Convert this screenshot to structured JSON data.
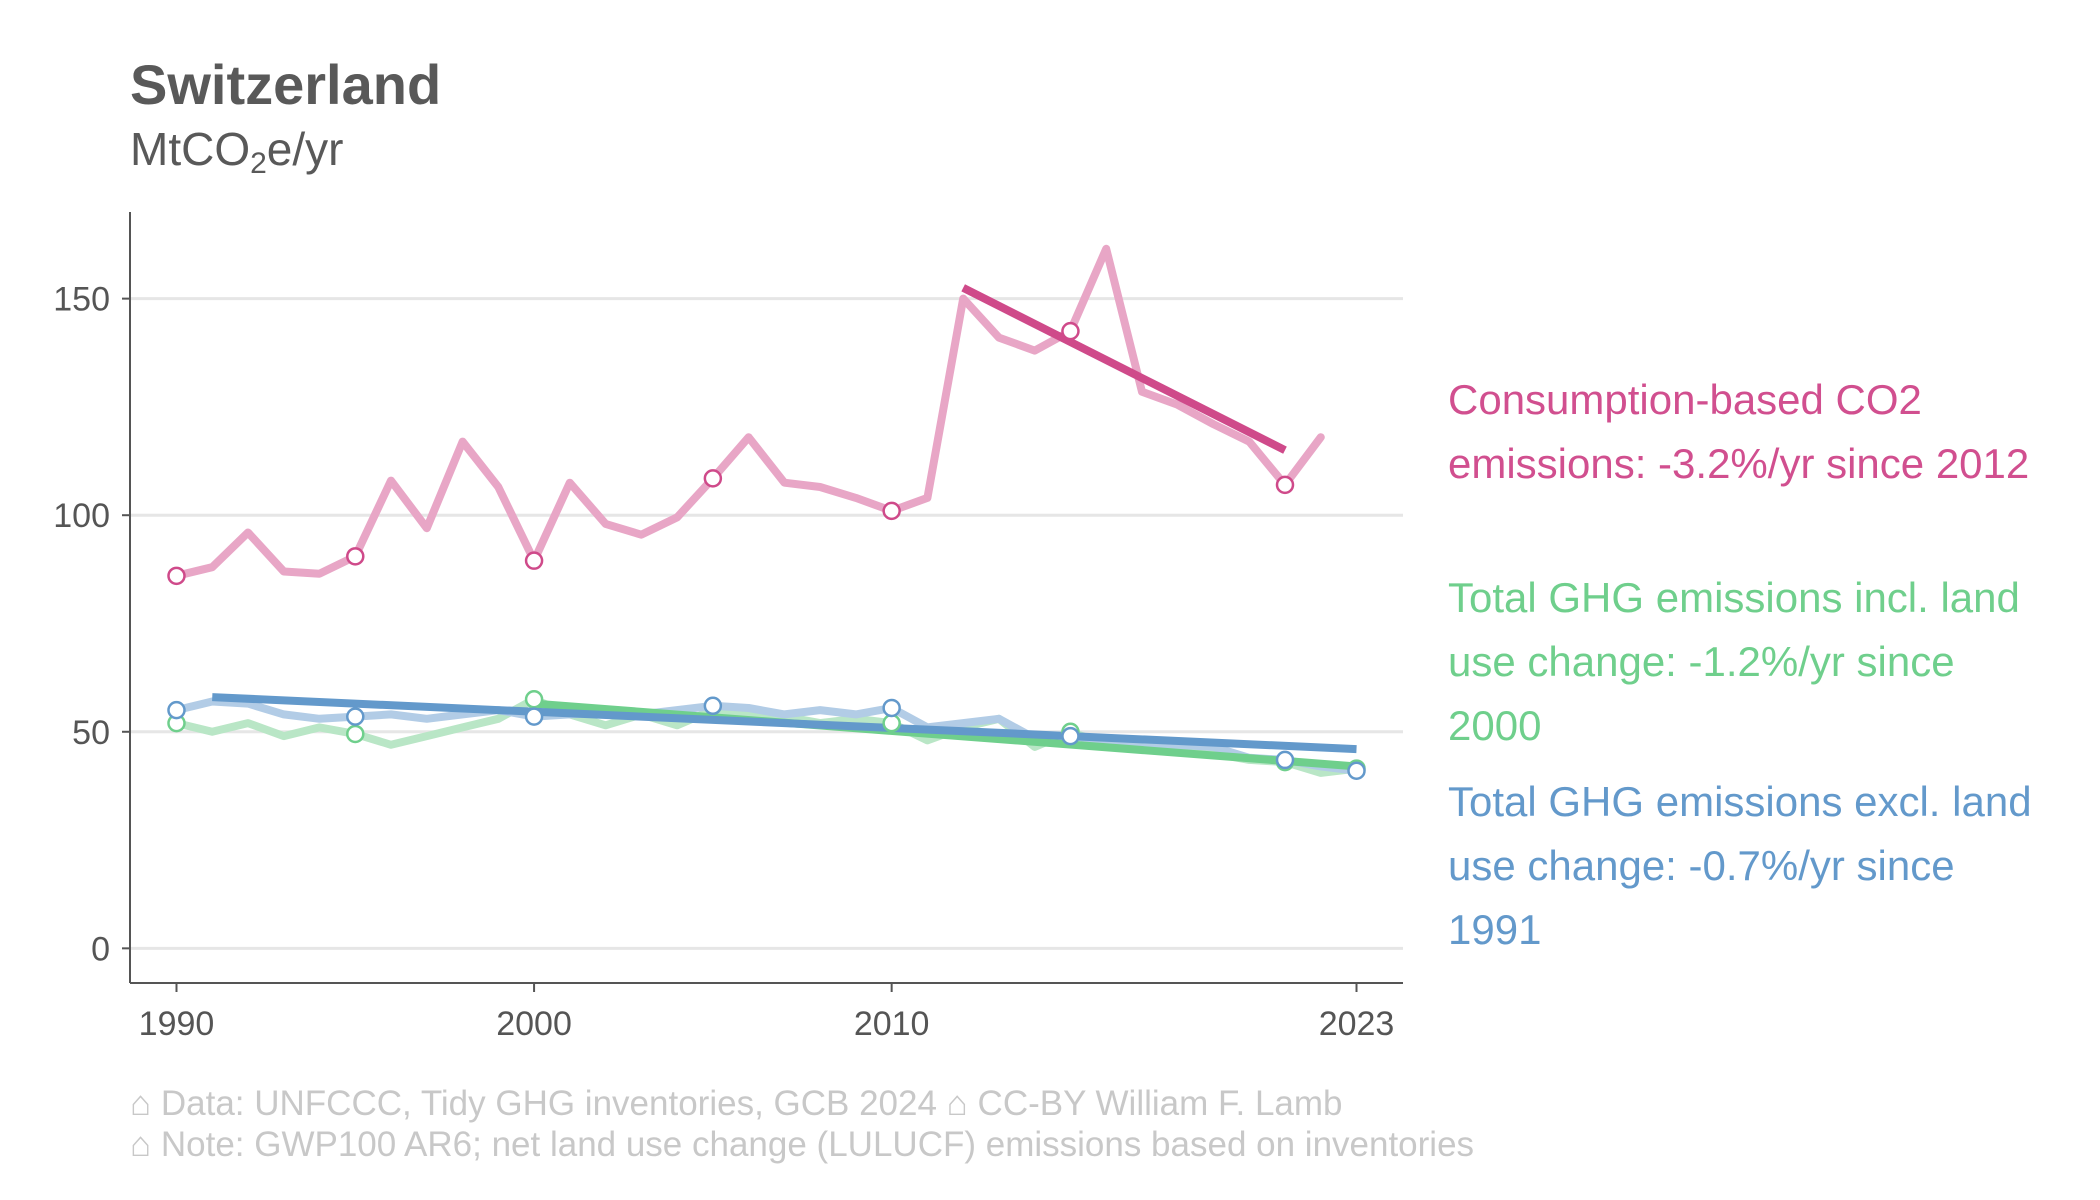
{
  "header": {
    "title": "Switzerland",
    "subtitle_main": "MtCO",
    "subtitle_sub": "2",
    "subtitle_tail": "e/yr"
  },
  "legend": {
    "consumption": [
      "Consumption-based CO2",
      "emissions: -3.2%/yr since 2012"
    ],
    "incl_luc": [
      "Total GHG emissions incl. land",
      "use change: -1.2%/yr since",
      "2000"
    ],
    "excl_luc": [
      "Total GHG emissions excl. land",
      "use change: -0.7%/yr since",
      "1991"
    ]
  },
  "footer": {
    "line1": "⌂ Data: UNFCCC, Tidy GHG inventories, GCB 2024    ⌂ CC-BY William F. Lamb",
    "line2": "⌂ Note: GWP100 AR6; net land use change (LULUCF) emissions based on inventories"
  },
  "colors": {
    "consumption_line": "#e8a6c6",
    "consumption_trend": "#cf4a8a",
    "incl_line": "#b9e6c6",
    "incl_trend": "#6fcf8c",
    "excl_line": "#b2cce6",
    "excl_trend": "#6399cb",
    "grid": "#e6e6e6",
    "axis": "#555555"
  },
  "chart_data": {
    "type": "line",
    "xlim": [
      1988.7,
      2024.3
    ],
    "ylim": [
      -8,
      170
    ],
    "xticks": [
      1990,
      2000,
      2010,
      2023
    ],
    "yticks": [
      0,
      50,
      100,
      150
    ],
    "grid": "horizontal",
    "legend_position": "right",
    "series": [
      {
        "key": "consumption",
        "line_color": "#e8a6c6",
        "marker_color": "#cf4a8a",
        "x": [
          1990,
          1991,
          1992,
          1993,
          1994,
          1995,
          1996,
          1997,
          1998,
          1999,
          2000,
          2001,
          2002,
          2003,
          2004,
          2005,
          2006,
          2007,
          2008,
          2009,
          2010,
          2011,
          2012,
          2013,
          2014,
          2015,
          2016,
          2017,
          2018,
          2019,
          2020,
          2021,
          2022
        ],
        "y": [
          86,
          88,
          96,
          87,
          86.5,
          90.5,
          108,
          97,
          117,
          106.5,
          89.5,
          107.5,
          98,
          95.5,
          99.5,
          108.5,
          118,
          107.5,
          106.5,
          104,
          101,
          104,
          150,
          141,
          138,
          142.5,
          161.5,
          128.5,
          125.5,
          121,
          117,
          107,
          118
        ],
        "markers_x": [
          1990,
          1995,
          2000,
          2005,
          2010,
          2015,
          2021
        ],
        "markers_y": [
          86,
          90.5,
          89.5,
          108.5,
          101,
          142.5,
          107
        ],
        "trend": {
          "x0": 2012,
          "y0": 152.5,
          "x1": 2021,
          "y1": 115,
          "color": "#cf4a8a"
        }
      },
      {
        "key": "incl_luc",
        "line_color": "#b9e6c6",
        "marker_color": "#6fcf8c",
        "x": [
          1990,
          1991,
          1992,
          1993,
          1994,
          1995,
          1996,
          1997,
          1998,
          1999,
          2000,
          2001,
          2002,
          2003,
          2004,
          2005,
          2006,
          2007,
          2008,
          2009,
          2010,
          2011,
          2012,
          2013,
          2014,
          2015,
          2016,
          2017,
          2018,
          2019,
          2020,
          2021,
          2022,
          2023
        ],
        "y": [
          52,
          50,
          52,
          49,
          51,
          49.5,
          47,
          49,
          51,
          53,
          57.5,
          54,
          51.5,
          54,
          51.5,
          55,
          54,
          53.5,
          52,
          53,
          52,
          48,
          51,
          53,
          46.5,
          50,
          47,
          47,
          46.5,
          45,
          43.5,
          43,
          40.5,
          41.5
        ],
        "markers_x": [
          1990,
          1995,
          2000,
          2010,
          2015,
          2021,
          2023
        ],
        "markers_y": [
          52,
          49.5,
          57.5,
          52,
          50,
          43,
          41.5
        ],
        "trend": {
          "x0": 2000,
          "y0": 56.5,
          "x1": 2023,
          "y1": 42,
          "color": "#6fcf8c"
        }
      },
      {
        "key": "excl_luc",
        "line_color": "#b2cce6",
        "marker_color": "#6399cb",
        "x": [
          1990,
          1991,
          1992,
          1993,
          1994,
          1995,
          1996,
          1997,
          1998,
          1999,
          2000,
          2001,
          2002,
          2003,
          2004,
          2005,
          2006,
          2007,
          2008,
          2009,
          2010,
          2011,
          2012,
          2013,
          2014,
          2015,
          2016,
          2017,
          2018,
          2019,
          2020,
          2021,
          2022,
          2023
        ],
        "y": [
          55,
          57,
          56.5,
          54,
          53,
          53.5,
          54,
          53,
          54,
          55,
          53.5,
          54,
          54.5,
          54,
          55,
          56,
          55.5,
          54,
          55,
          54,
          55.5,
          51,
          52,
          53,
          48.5,
          49,
          48,
          47.5,
          47,
          46.5,
          44,
          43.5,
          42,
          41
        ],
        "markers_x": [
          1990,
          1995,
          2000,
          2005,
          2010,
          2015,
          2021,
          2023
        ],
        "markers_y": [
          55,
          53.5,
          53.5,
          56,
          55.5,
          49,
          43.5,
          41
        ],
        "trend": {
          "x0": 1991,
          "y0": 58,
          "x1": 2023,
          "y1": 46,
          "color": "#6399cb"
        }
      }
    ]
  }
}
